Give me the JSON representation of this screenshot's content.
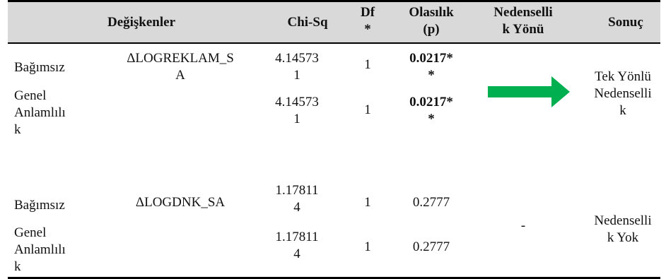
{
  "header": {
    "degiskenler": "Değişkenler",
    "chisq": "Chi-Sq",
    "df": "Df\n*",
    "olasilik": "Olasılık\n(p)",
    "nedensellik_yonu": "Nedenselli\nk Yönü",
    "sonuc": "Sonuç"
  },
  "groups": [
    {
      "variable": "ΔLOGREKLAM_S\nA",
      "rows": [
        {
          "label": "Bağımsız",
          "chisq": "4.14573\n1",
          "df": "1",
          "p": "0.0217*\n*"
        },
        {
          "label": "Genel\nAnlamlılı\nk",
          "chisq": "4.14573\n1",
          "df": "1",
          "p": "0.0217*\n*"
        }
      ],
      "direction": "green-right-arrow",
      "direction_color": "#00b050",
      "result": "Tek Yönlü\nNedenselli\nk"
    },
    {
      "variable": "ΔLOGDNK_SA",
      "rows": [
        {
          "label": "Bağımsız",
          "chisq": "1.17811\n4",
          "df": "1",
          "p": "0.2777"
        },
        {
          "label": "Genel\nAnlamlılı\nk",
          "chisq": "1.17811\n4",
          "df": "1",
          "p": "0.2777"
        }
      ],
      "direction": "-",
      "result": "Nedenselli\nk Yok"
    }
  ]
}
